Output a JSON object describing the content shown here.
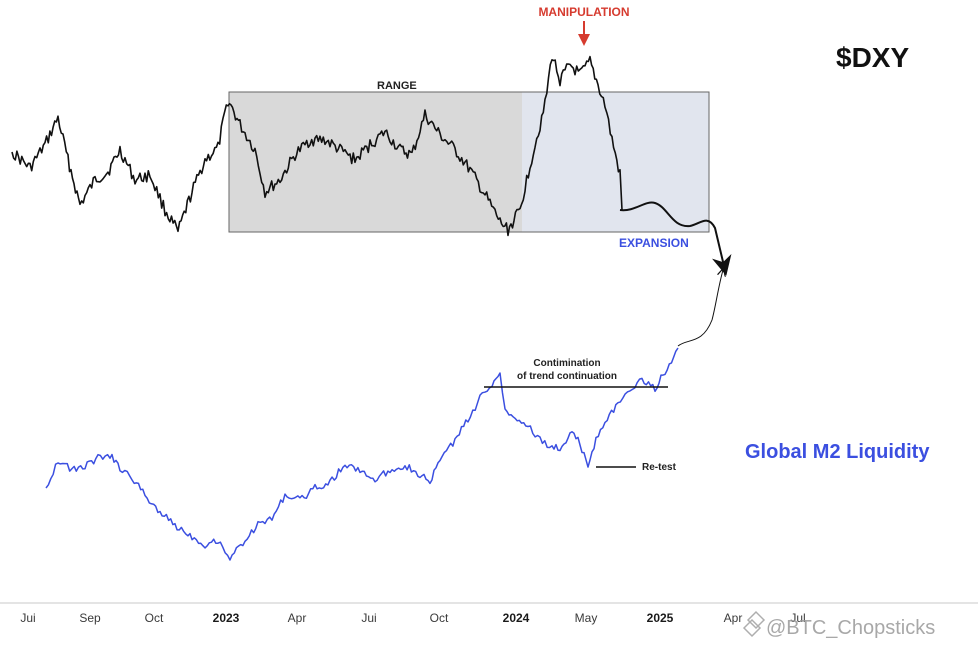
{
  "chart_data": {
    "type": "line",
    "titles": {
      "dxy": "$DXY",
      "m2": "Global M2 Liquidity"
    },
    "x_ticks": [
      {
        "label": "Jui",
        "bold": false
      },
      {
        "label": "Sep",
        "bold": false
      },
      {
        "label": "Oct",
        "bold": false
      },
      {
        "label": "2023",
        "bold": true
      },
      {
        "label": "Apr",
        "bold": false
      },
      {
        "label": "Jui",
        "bold": false
      },
      {
        "label": "Oct",
        "bold": false
      },
      {
        "label": "2024",
        "bold": true
      },
      {
        "label": "May",
        "bold": false
      },
      {
        "label": "2025",
        "bold": true
      },
      {
        "label": "Apr",
        "bold": false
      },
      {
        "label": "Jul",
        "bold": false
      }
    ],
    "annotations": {
      "range": "RANGE",
      "manipulation": "MANIPULATION",
      "expansion": "EXPANSION",
      "confirmation_line1": "Contimination",
      "confirmation_line2": "of trend continuation",
      "retest": "Re-test"
    },
    "watermark": "@BTC_Chopsticks",
    "colors": {
      "dxy": "#111111",
      "m2": "#3b4fe0",
      "range_fill": "#d9d9d9",
      "manipulation_zone": "#e1e5ee",
      "manipulation_arrow": "#d63b2f"
    },
    "series": [
      {
        "name": "$DXY",
        "anchors": [
          [
            12,
            152
          ],
          [
            30,
            168
          ],
          [
            45,
            145
          ],
          [
            58,
            118
          ],
          [
            68,
            160
          ],
          [
            80,
            205
          ],
          [
            95,
            180
          ],
          [
            108,
            172
          ],
          [
            120,
            150
          ],
          [
            135,
            180
          ],
          [
            150,
            175
          ],
          [
            165,
            210
          ],
          [
            178,
            232
          ],
          [
            192,
            192
          ],
          [
            205,
            160
          ],
          [
            218,
            148
          ],
          [
            228,
            100
          ],
          [
            240,
            125
          ],
          [
            255,
            150
          ],
          [
            265,
            192
          ],
          [
            280,
            180
          ],
          [
            295,
            155
          ],
          [
            310,
            140
          ],
          [
            325,
            140
          ],
          [
            340,
            150
          ],
          [
            355,
            160
          ],
          [
            370,
            145
          ],
          [
            385,
            132
          ],
          [
            400,
            150
          ],
          [
            412,
            155
          ],
          [
            425,
            115
          ],
          [
            440,
            135
          ],
          [
            455,
            150
          ],
          [
            470,
            170
          ],
          [
            485,
            195
          ],
          [
            500,
            222
          ],
          [
            508,
            230
          ],
          [
            520,
            210
          ],
          [
            530,
            165
          ],
          [
            545,
            105
          ],
          [
            552,
            55
          ],
          [
            560,
            80
          ],
          [
            570,
            65
          ],
          [
            580,
            75
          ],
          [
            590,
            62
          ],
          [
            598,
            85
          ],
          [
            605,
            105
          ],
          [
            612,
            140
          ],
          [
            620,
            175
          ],
          [
            622,
            210
          ]
        ]
      },
      {
        "name": "Global M2 Liquidity",
        "anchors": [
          [
            46,
            488
          ],
          [
            58,
            460
          ],
          [
            72,
            470
          ],
          [
            85,
            466
          ],
          [
            98,
            458
          ],
          [
            110,
            455
          ],
          [
            120,
            468
          ],
          [
            132,
            478
          ],
          [
            145,
            495
          ],
          [
            160,
            512
          ],
          [
            175,
            525
          ],
          [
            190,
            535
          ],
          [
            205,
            545
          ],
          [
            218,
            540
          ],
          [
            230,
            558
          ],
          [
            245,
            540
          ],
          [
            258,
            525
          ],
          [
            272,
            518
          ],
          [
            285,
            495
          ],
          [
            300,
            500
          ],
          [
            315,
            488
          ],
          [
            330,
            482
          ],
          [
            345,
            465
          ],
          [
            360,
            470
          ],
          [
            375,
            480
          ],
          [
            390,
            470
          ],
          [
            405,
            465
          ],
          [
            420,
            475
          ],
          [
            430,
            482
          ],
          [
            440,
            460
          ],
          [
            455,
            440
          ],
          [
            468,
            420
          ],
          [
            480,
            398
          ],
          [
            492,
            385
          ],
          [
            500,
            370
          ],
          [
            505,
            410
          ],
          [
            515,
            418
          ],
          [
            528,
            425
          ],
          [
            540,
            440
          ],
          [
            552,
            448
          ],
          [
            562,
            448
          ],
          [
            570,
            432
          ],
          [
            578,
            440
          ],
          [
            588,
            465
          ],
          [
            596,
            440
          ],
          [
            605,
            420
          ],
          [
            618,
            405
          ],
          [
            630,
            390
          ],
          [
            642,
            380
          ],
          [
            655,
            388
          ],
          [
            665,
            372
          ],
          [
            678,
            348
          ]
        ]
      }
    ]
  }
}
